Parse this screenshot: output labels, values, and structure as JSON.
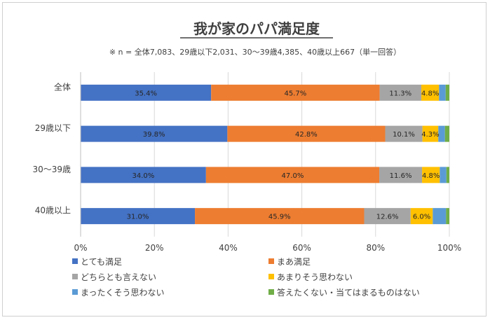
{
  "chart_data": {
    "type": "bar",
    "orientation": "horizontal",
    "stacked": true,
    "title": "我が家のパパ満足度",
    "subtitle": "※ n = 全体7,083、29歳以下2,031、30～39歳4,385、40歳以上667（単一回答）",
    "categories": [
      "全体",
      "29歳以下",
      "30～39歳",
      "40歳以上"
    ],
    "xlim": [
      0,
      100
    ],
    "x_ticks": [
      "0%",
      "20%",
      "40%",
      "60%",
      "80%",
      "100%"
    ],
    "grid": true,
    "legend_position": "bottom",
    "series": [
      {
        "name": "とても満足",
        "color": "#4472c4",
        "values": [
          35.4,
          39.8,
          34.0,
          31.0
        ],
        "labels": [
          "35.4%",
          "39.8%",
          "34.0%",
          "31.0%"
        ]
      },
      {
        "name": "まあ満足",
        "color": "#ed7d31",
        "values": [
          45.7,
          42.8,
          47.0,
          45.9
        ],
        "labels": [
          "45.7%",
          "42.8%",
          "47.0%",
          "45.9%"
        ]
      },
      {
        "name": "どちらとも言えない",
        "color": "#a5a5a5",
        "values": [
          11.3,
          10.1,
          11.6,
          12.6
        ],
        "labels": [
          "11.3%",
          "10.1%",
          "11.6%",
          "12.6%"
        ]
      },
      {
        "name": "あまりそう思わない",
        "color": "#ffc000",
        "values": [
          4.8,
          4.3,
          4.8,
          6.0
        ],
        "labels": [
          "4.8%",
          "4.3%",
          "4.8%",
          "6.0%"
        ]
      },
      {
        "name": "まったくそう思わない",
        "color": "#5b9bd5",
        "values": [
          1.8,
          1.8,
          1.8,
          3.6
        ],
        "labels": [
          "",
          "",
          "",
          ""
        ]
      },
      {
        "name": "答えたくない・当てはまるものはない",
        "color": "#70ad47",
        "values": [
          1.0,
          1.2,
          0.8,
          0.9
        ],
        "labels": [
          "",
          "",
          "",
          ""
        ]
      }
    ]
  }
}
